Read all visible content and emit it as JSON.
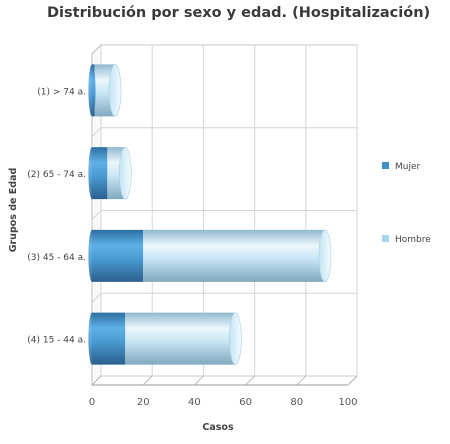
{
  "chart_data": {
    "type": "bar",
    "orientation": "horizontal",
    "stacked": true,
    "title": "Distribución por sexo y edad. (Hospitalización)",
    "xlabel": "Casos",
    "ylabel": "Grupos de Edad",
    "categories": [
      "(1) > 74 a.",
      "(2) 65 - 74 a.",
      "(3) 45 - 64 a.",
      "(4) 15 - 44 a."
    ],
    "series": [
      {
        "name": "Mujer",
        "values": [
          1,
          6,
          20,
          13
        ],
        "color": "#3f8fc8"
      },
      {
        "name": "Hombre",
        "values": [
          8,
          7,
          71,
          43
        ],
        "color": "#a8d6ee"
      }
    ],
    "xlim": [
      0,
      100
    ],
    "xticks": [
      "0",
      "20",
      "40",
      "60",
      "80",
      "100"
    ],
    "grid": true,
    "legend": "right"
  }
}
